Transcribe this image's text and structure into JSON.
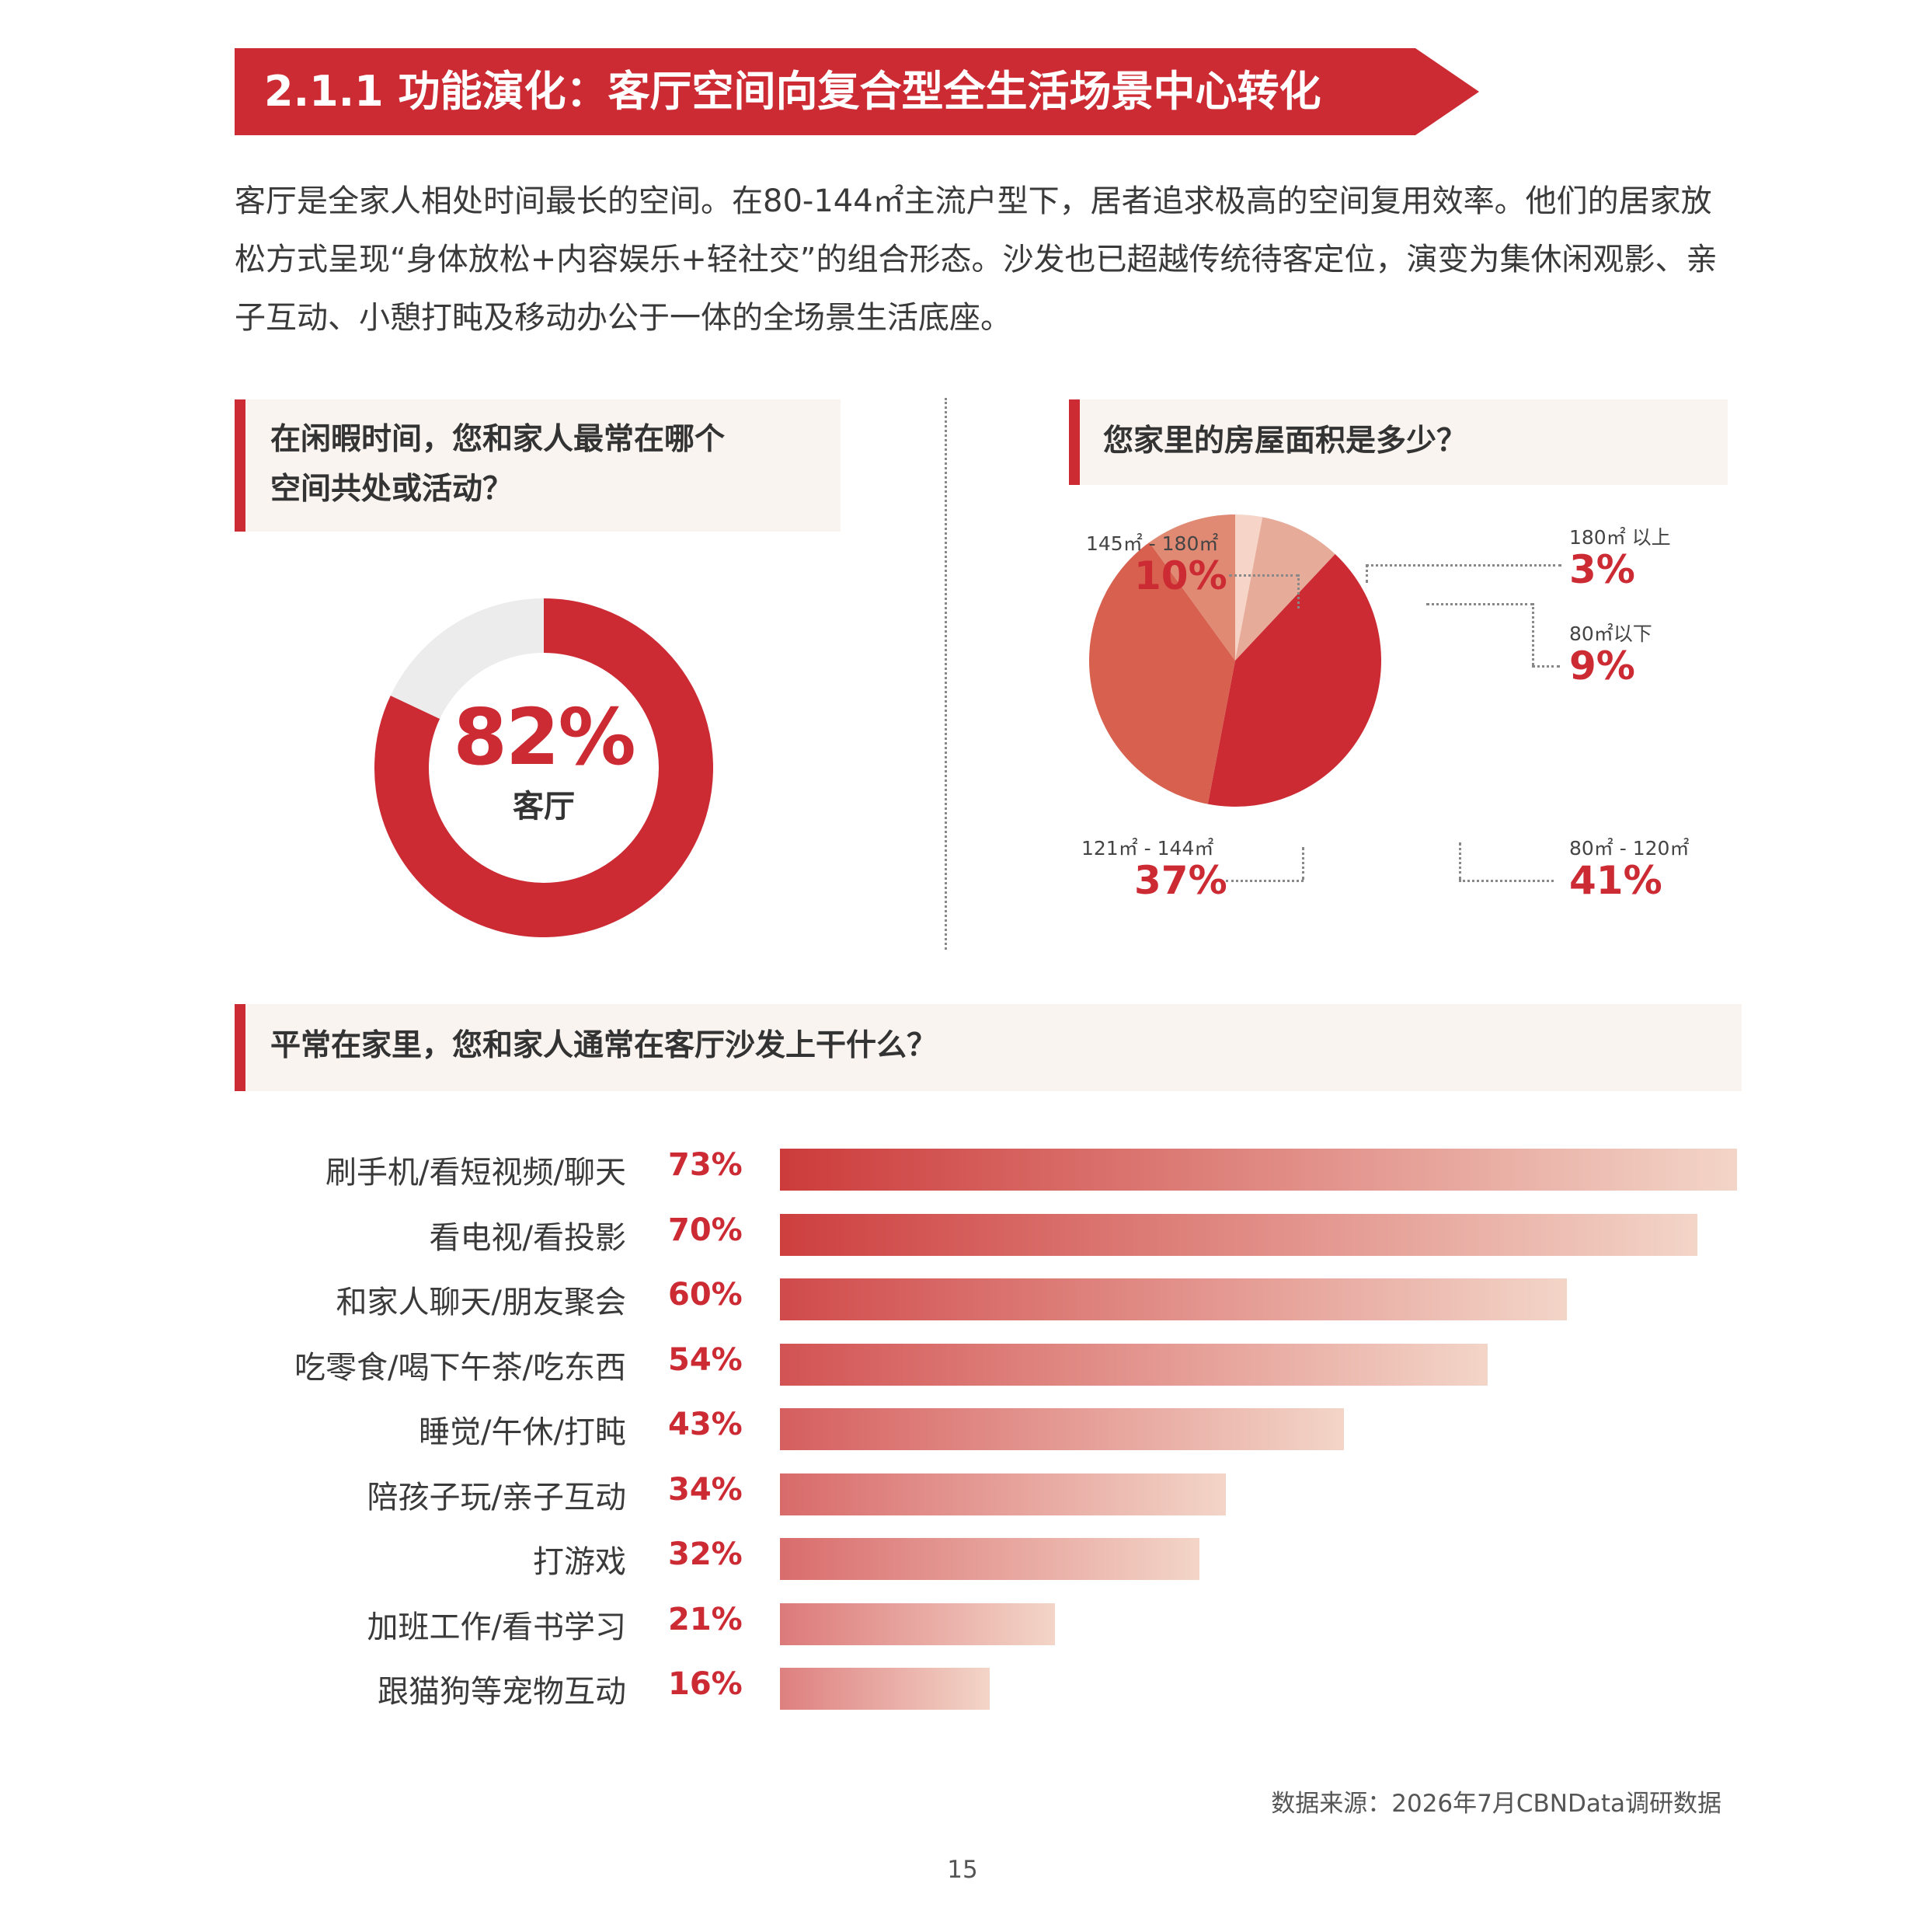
{
  "title": "2.1.1 功能演化：客厅空间向复合型全生活场景中心转化",
  "intro": "客厅是全家人相处时间最长的空间。在80-144㎡主流户型下，居者追求极高的空间复用效率。他们的居家放松方式呈现“身体放松+内容娱乐+轻社交”的组合形态。沙发也已超越传统待客定位，演变为集休闲观影、亲子互动、小憩打盹及移动办公于一体的全场景生活底座。",
  "q1": {
    "line1": "在闲暇时间，您和家人最常在哪个",
    "line2": "空间共处或活动？"
  },
  "q2": {
    "text": "您家里的房屋面积是多少？"
  },
  "q3": {
    "text": "平常在家里，您和家人通常在客厅沙发上干什么？"
  },
  "donut": {
    "value_text": "82%",
    "label": "客厅"
  },
  "pie_labels": {
    "s145": {
      "label": "145㎡ - 180㎡",
      "value": "10%"
    },
    "s180": {
      "label": "180㎡ 以上",
      "value": "3%"
    },
    "s80below": {
      "label": "80㎡以下",
      "value": "9%"
    },
    "s121": {
      "label": "121㎡ - 144㎡",
      "value": "37%"
    },
    "s80": {
      "label": "80㎡ - 120㎡",
      "value": "41%"
    }
  },
  "chart_data": [
    {
      "type": "pie",
      "subtype": "donut",
      "title": "在闲暇时间，您和家人最常在哪个空间共处或活动？",
      "categories": [
        "客厅"
      ],
      "values": [
        82
      ],
      "unit": "%",
      "colors": {
        "fill": "#cc2b34",
        "rest": "#ececec"
      }
    },
    {
      "type": "pie",
      "title": "您家里的房屋面积是多少？",
      "categories": [
        "180㎡ 以上",
        "80㎡以下",
        "80㎡ - 120㎡",
        "121㎡ - 144㎡",
        "145㎡ - 180㎡"
      ],
      "values": [
        3,
        9,
        41,
        37,
        10
      ],
      "unit": "%",
      "colors": [
        "#f6d4c8",
        "#e7ab99",
        "#cc2b34",
        "#d7604f",
        "#e08a74"
      ]
    },
    {
      "type": "bar",
      "orientation": "horizontal",
      "title": "平常在家里，您和家人通常在客厅沙发上干什么？",
      "categories": [
        "刷手机/看短视频/聊天",
        "看电视/看投影",
        "和家人聊天/朋友聚会",
        "吃零食/喝下午茶/吃东西",
        "睡觉/午休/打盹",
        "陪孩子玩/亲子互动",
        "打游戏",
        "加班工作/看书学习",
        "跟猫狗等宠物互动"
      ],
      "values": [
        73,
        70,
        60,
        54,
        43,
        34,
        32,
        21,
        16
      ],
      "labels": [
        "73%",
        "70%",
        "60%",
        "54%",
        "43%",
        "34%",
        "32%",
        "21%",
        "16%"
      ],
      "unit": "%",
      "colors": {
        "start": "#cc3b3b",
        "end": "#f3d5c8"
      }
    }
  ],
  "source": "数据来源：2026年7月CBNData调研数据",
  "page_number": "15"
}
